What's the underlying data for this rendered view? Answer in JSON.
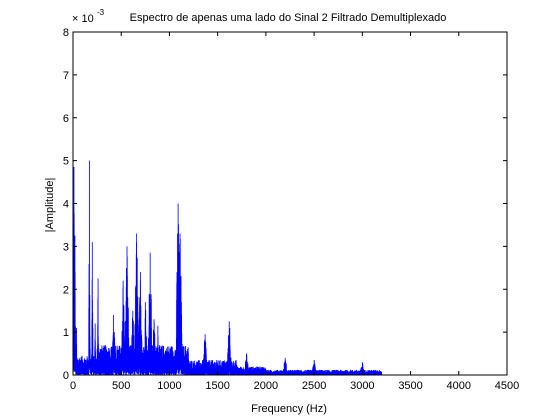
{
  "chart_data": {
    "type": "line",
    "title": "Espectro de apenas uma lado do Sinal 2 Filtrado Demultiplexado",
    "xlabel": "Frequency (Hz)",
    "ylabel": "|Amplitude|",
    "y_exponent_label": "× 10",
    "y_exponent_power": "-3",
    "xlim": [
      0,
      4500
    ],
    "ylim": [
      0,
      8
    ],
    "xticks": [
      "0",
      "500",
      "1000",
      "1500",
      "2000",
      "2500",
      "3000",
      "3500",
      "4000",
      "4500"
    ],
    "yticks": [
      "0",
      "1",
      "2",
      "3",
      "4",
      "5",
      "6",
      "7",
      "8"
    ],
    "y_scale_factor": 0.001,
    "grid": false,
    "line_color": "#0000ff",
    "signal_end_hz": 3200,
    "peaks": [
      {
        "x": 10,
        "y": 4.85
      },
      {
        "x": 20,
        "y": 3.25
      },
      {
        "x": 35,
        "y": 1.1
      },
      {
        "x": 170,
        "y": 5.0
      },
      {
        "x": 200,
        "y": 3.1
      },
      {
        "x": 230,
        "y": 1.2
      },
      {
        "x": 260,
        "y": 2.25
      },
      {
        "x": 420,
        "y": 1.4
      },
      {
        "x": 520,
        "y": 2.2
      },
      {
        "x": 560,
        "y": 3.0
      },
      {
        "x": 620,
        "y": 1.5
      },
      {
        "x": 660,
        "y": 3.3
      },
      {
        "x": 700,
        "y": 2.4
      },
      {
        "x": 750,
        "y": 1.7
      },
      {
        "x": 800,
        "y": 2.85
      },
      {
        "x": 840,
        "y": 1.3
      },
      {
        "x": 880,
        "y": 1.15
      },
      {
        "x": 1090,
        "y": 4.0
      },
      {
        "x": 1110,
        "y": 3.3
      },
      {
        "x": 1370,
        "y": 0.95
      },
      {
        "x": 1620,
        "y": 1.25
      },
      {
        "x": 1800,
        "y": 0.5
      },
      {
        "x": 2200,
        "y": 0.4
      },
      {
        "x": 2500,
        "y": 0.35
      },
      {
        "x": 3000,
        "y": 0.3
      }
    ]
  }
}
